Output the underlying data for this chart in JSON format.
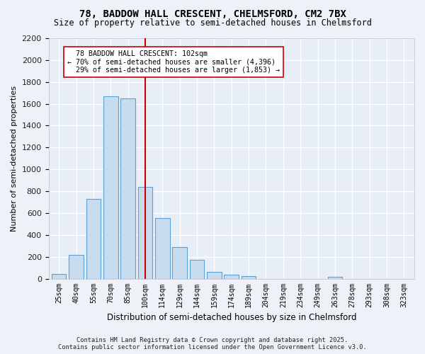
{
  "title": "78, BADDOW HALL CRESCENT, CHELMSFORD, CM2 7BX",
  "subtitle": "Size of property relative to semi-detached houses in Chelmsford",
  "xlabel": "Distribution of semi-detached houses by size in Chelmsford",
  "ylabel": "Number of semi-detached properties",
  "categories": [
    "25sqm",
    "40sqm",
    "55sqm",
    "70sqm",
    "85sqm",
    "100sqm",
    "114sqm",
    "129sqm",
    "144sqm",
    "159sqm",
    "174sqm",
    "189sqm",
    "204sqm",
    "219sqm",
    "234sqm",
    "249sqm",
    "263sqm",
    "278sqm",
    "293sqm",
    "308sqm",
    "323sqm"
  ],
  "values": [
    40,
    220,
    730,
    1670,
    1650,
    840,
    555,
    290,
    175,
    65,
    38,
    22,
    0,
    0,
    0,
    0,
    18,
    0,
    0,
    0,
    0
  ],
  "bar_color": "#c8dcf0",
  "bar_edge_color": "#5b9fd4",
  "vline_color": "#cc0000",
  "vline_x": 5.0,
  "property_label": "78 BADDOW HALL CRESCENT: 102sqm",
  "pct_smaller": "70%",
  "pct_smaller_count": "4,396",
  "pct_larger": "29%",
  "pct_larger_count": "1,853",
  "ylim": [
    0,
    2200
  ],
  "yticks": [
    0,
    200,
    400,
    600,
    800,
    1000,
    1200,
    1400,
    1600,
    1800,
    2000,
    2200
  ],
  "bg_color": "#e8eef8",
  "grid_color": "#ffffff",
  "fig_bg": "#eef2f8",
  "footer1": "Contains HM Land Registry data © Crown copyright and database right 2025.",
  "footer2": "Contains public sector information licensed under the Open Government Licence v3.0."
}
